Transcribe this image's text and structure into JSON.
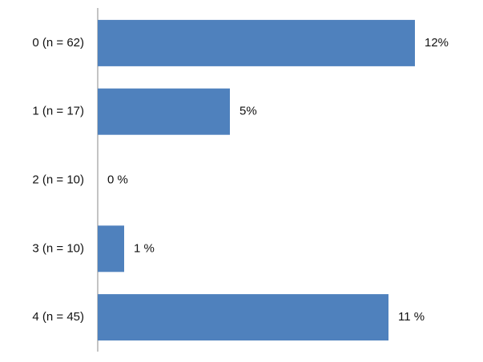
{
  "chart_data": {
    "type": "barh",
    "categories": [
      "0 (n = 62)",
      "1 (n = 17)",
      "2 (n = 10)",
      "3 (n = 10)",
      "4 (n = 45)"
    ],
    "values": [
      12,
      5,
      0,
      1,
      11
    ],
    "value_labels": [
      "12%",
      "5%",
      "0 %",
      "1 %",
      "11 %"
    ],
    "color": "#4f81bd"
  }
}
